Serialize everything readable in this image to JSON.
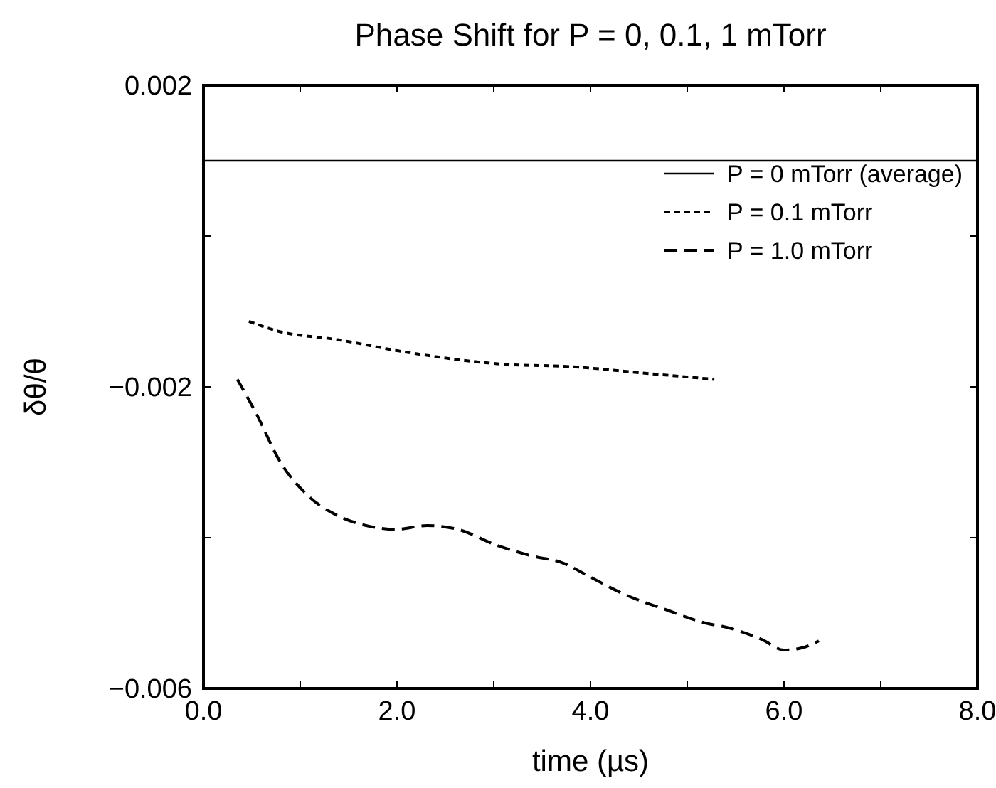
{
  "chart_data": {
    "type": "line",
    "title": "Phase Shift for P = 0, 0.1, 1 mTorr",
    "xlabel": "time (µs)",
    "ylabel": "δθ/θ",
    "xlim": [
      0,
      8
    ],
    "ylim": [
      -0.006,
      0.002
    ],
    "xticks": [
      {
        "value": 0,
        "label": "0.0"
      },
      {
        "value": 1,
        "label": null
      },
      {
        "value": 2,
        "label": "2.0"
      },
      {
        "value": 3,
        "label": null
      },
      {
        "value": 4,
        "label": "4.0"
      },
      {
        "value": 5,
        "label": null
      },
      {
        "value": 6,
        "label": "6.0"
      },
      {
        "value": 7,
        "label": null
      },
      {
        "value": 8,
        "label": "8.0"
      }
    ],
    "yticks": [
      {
        "value": -0.006,
        "label": "−0.006"
      },
      {
        "value": -0.004,
        "label": null
      },
      {
        "value": -0.002,
        "label": "−0.002"
      },
      {
        "value": 0,
        "label": null
      },
      {
        "value": 0.002,
        "label": "0.002"
      }
    ],
    "grid": false,
    "legend": "top right",
    "marker": "none",
    "series": [
      {
        "name": "P = 0 mTorr (average)",
        "color": "#000000",
        "line_style": "solid",
        "x": [
          0,
          8
        ],
        "values": [
          0.001,
          0.001
        ]
      },
      {
        "name": "P = 0.1 mTorr",
        "color": "#000000",
        "line_style": "dotted",
        "x": [
          0.47,
          0.77,
          1.37,
          2.1,
          3.11,
          3.78,
          4.58,
          5.28
        ],
        "values": [
          -0.00113,
          -0.00126,
          -0.00137,
          -0.00154,
          -0.0017,
          -0.00173,
          -0.00182,
          -0.0019
        ]
      },
      {
        "name": "P = 1.0 mTorr",
        "color": "#000000",
        "line_style": "dashed",
        "x": [
          0.35,
          0.54,
          0.8,
          1.07,
          1.39,
          1.72,
          1.98,
          2.31,
          2.63,
          3.03,
          3.42,
          3.68,
          4.01,
          4.33,
          4.79,
          5.18,
          5.44,
          5.77,
          6.0,
          6.16,
          6.36
        ],
        "values": [
          -0.0019,
          -0.00234,
          -0.00301,
          -0.00343,
          -0.00371,
          -0.00385,
          -0.00389,
          -0.00384,
          -0.00389,
          -0.0041,
          -0.00425,
          -0.00432,
          -0.00453,
          -0.00474,
          -0.00496,
          -0.00513,
          -0.0052,
          -0.00535,
          -0.00549,
          -0.00547,
          -0.00537
        ]
      }
    ]
  }
}
